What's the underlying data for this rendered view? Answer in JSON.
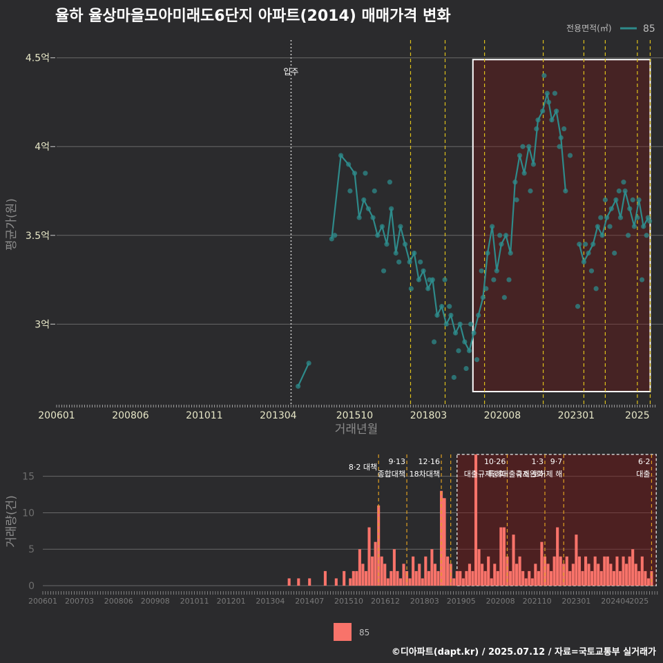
{
  "title": "율하 율상마을모아미래도6단지 아파트(2014) 매매가격 변화",
  "legend_top": {
    "title": "전용면적(㎡)",
    "label": "85",
    "color": "#2e8b8b"
  },
  "legend_bottom": {
    "label": "85",
    "color": "#f8736a"
  },
  "footer": "©디아파트(dapt.kr) / 2025.07.12 / 자료=국토교통부 실거래가",
  "chart_data": [
    {
      "type": "line",
      "title": "율하 율상마을모아미래도6단지 아파트(2014) 매매가격 변화",
      "xlabel": "거래년월",
      "ylabel": "평균가(원)",
      "ylim": [
        2.55,
        4.6
      ],
      "x_ticks": [
        "200601",
        "200806",
        "201011",
        "201304",
        "201510",
        "201803",
        "202008",
        "202301",
        "2025"
      ],
      "y_ticks": [
        {
          "v": 3.0,
          "label": "3억"
        },
        {
          "v": 3.5,
          "label": "3.5억"
        },
        {
          "v": 4.0,
          "label": "4억"
        },
        {
          "v": 4.5,
          "label": "4.5억"
        }
      ],
      "grid": true,
      "legend_position": "top-right",
      "vlines_policy": [
        2017.58,
        2018.71,
        2020.0,
        2021.92,
        2023.25,
        2023.95,
        2025.0,
        2025.42
      ],
      "vline_event": {
        "x": 2013.67,
        "label": "입주"
      },
      "highlight_box": {
        "x0": 2019.62,
        "x1": 2025.42,
        "y0": 2.62,
        "y1": 4.49
      },
      "series": [
        {
          "name": "85",
          "points": [
            [
              2013.9,
              2.65
            ],
            [
              2014.25,
              2.78
            ],
            [
              2015.0,
              3.48
            ],
            [
              2015.3,
              3.95
            ],
            [
              2015.55,
              3.9
            ],
            [
              2015.75,
              3.85
            ],
            [
              2015.9,
              3.6
            ],
            [
              2016.05,
              3.7
            ],
            [
              2016.2,
              3.65
            ],
            [
              2016.35,
              3.6
            ],
            [
              2016.5,
              3.5
            ],
            [
              2016.65,
              3.55
            ],
            [
              2016.8,
              3.45
            ],
            [
              2016.95,
              3.65
            ],
            [
              2017.1,
              3.4
            ],
            [
              2017.25,
              3.55
            ],
            [
              2017.4,
              3.45
            ],
            [
              2017.55,
              3.35
            ],
            [
              2017.7,
              3.4
            ],
            [
              2017.85,
              3.25
            ],
            [
              2018.0,
              3.3
            ],
            [
              2018.15,
              3.2
            ],
            [
              2018.3,
              3.25
            ],
            [
              2018.45,
              3.05
            ],
            [
              2018.6,
              3.1
            ],
            [
              2018.75,
              3.0
            ],
            [
              2018.9,
              3.05
            ],
            [
              2019.05,
              2.95
            ],
            [
              2019.2,
              3.0
            ],
            [
              2019.35,
              2.9
            ],
            [
              2019.5,
              2.85
            ],
            [
              2019.65,
              2.95
            ],
            [
              2019.8,
              3.05
            ],
            [
              2019.95,
              3.15
            ],
            [
              2020.1,
              3.4
            ],
            [
              2020.25,
              3.55
            ],
            [
              2020.4,
              3.3
            ],
            [
              2020.55,
              3.45
            ],
            [
              2020.7,
              3.5
            ],
            [
              2020.85,
              3.4
            ],
            [
              2021.0,
              3.8
            ],
            [
              2021.15,
              3.95
            ],
            [
              2021.3,
              3.85
            ],
            [
              2021.45,
              4.0
            ],
            [
              2021.6,
              3.9
            ],
            [
              2021.75,
              4.15
            ],
            [
              2021.9,
              4.2
            ],
            [
              2022.05,
              4.3
            ],
            [
              2022.2,
              4.15
            ],
            [
              2022.35,
              4.2
            ],
            [
              2022.5,
              4.05
            ],
            [
              2022.65,
              3.75
            ],
            [
              2023.1,
              3.45
            ],
            [
              2023.25,
              3.35
            ],
            [
              2023.4,
              3.4
            ],
            [
              2023.55,
              3.45
            ],
            [
              2023.7,
              3.55
            ],
            [
              2023.85,
              3.5
            ],
            [
              2024.0,
              3.6
            ],
            [
              2024.15,
              3.65
            ],
            [
              2024.3,
              3.7
            ],
            [
              2024.45,
              3.6
            ],
            [
              2024.6,
              3.75
            ],
            [
              2024.75,
              3.65
            ],
            [
              2024.9,
              3.55
            ],
            [
              2025.05,
              3.7
            ],
            [
              2025.2,
              3.55
            ],
            [
              2025.35,
              3.6
            ]
          ]
        }
      ],
      "scatter_extra": [
        [
          2015.1,
          3.5
        ],
        [
          2015.6,
          3.75
        ],
        [
          2016.1,
          3.85
        ],
        [
          2016.4,
          3.75
        ],
        [
          2016.7,
          3.3
        ],
        [
          2016.9,
          3.8
        ],
        [
          2017.2,
          3.35
        ],
        [
          2017.6,
          3.2
        ],
        [
          2017.9,
          3.35
        ],
        [
          2018.2,
          3.25
        ],
        [
          2018.35,
          2.9
        ],
        [
          2018.7,
          3.25
        ],
        [
          2018.85,
          3.1
        ],
        [
          2019.0,
          2.7
        ],
        [
          2019.15,
          2.85
        ],
        [
          2019.4,
          2.75
        ],
        [
          2019.55,
          3.0
        ],
        [
          2019.75,
          2.8
        ],
        [
          2019.9,
          3.3
        ],
        [
          2020.05,
          3.2
        ],
        [
          2020.3,
          3.25
        ],
        [
          2020.5,
          3.5
        ],
        [
          2020.65,
          3.15
        ],
        [
          2020.8,
          3.25
        ],
        [
          2021.05,
          3.7
        ],
        [
          2021.25,
          4.0
        ],
        [
          2021.5,
          3.75
        ],
        [
          2021.7,
          4.1
        ],
        [
          2021.95,
          4.4
        ],
        [
          2022.1,
          4.25
        ],
        [
          2022.3,
          4.3
        ],
        [
          2022.45,
          4.0
        ],
        [
          2022.6,
          4.1
        ],
        [
          2022.8,
          3.95
        ],
        [
          2023.05,
          3.1
        ],
        [
          2023.3,
          3.45
        ],
        [
          2023.5,
          3.3
        ],
        [
          2023.65,
          3.2
        ],
        [
          2023.8,
          3.6
        ],
        [
          2023.95,
          3.7
        ],
        [
          2024.1,
          3.55
        ],
        [
          2024.25,
          3.4
        ],
        [
          2024.4,
          3.75
        ],
        [
          2024.55,
          3.8
        ],
        [
          2024.7,
          3.5
        ],
        [
          2024.85,
          3.7
        ],
        [
          2025.0,
          3.6
        ],
        [
          2025.15,
          3.25
        ],
        [
          2025.3,
          3.5
        ],
        [
          2025.4,
          3.58
        ]
      ]
    },
    {
      "type": "bar",
      "xlabel": "",
      "ylabel": "거래량(건)",
      "ylim": [
        0,
        18
      ],
      "y_ticks": [
        0,
        5,
        10,
        15
      ],
      "x_ticks": [
        "200601",
        "200703",
        "200806",
        "200908",
        "201011",
        "201201",
        "201304",
        "201407",
        "201510",
        "201612",
        "201803",
        "201905",
        "202008",
        "202110",
        "202301",
        "202404",
        "2025"
      ],
      "policy_lines": [
        {
          "x": 2016.7,
          "label": "8·2 대책"
        },
        {
          "x": 2017.6,
          "label": "9·13",
          "label2": "종합대책"
        },
        {
          "x": 2018.7,
          "label": "12·16",
          "label2": "18차대책"
        },
        {
          "x": 2019.0,
          "label": ""
        },
        {
          "x": 2020.8,
          "label": "10·26",
          "label2": "대출규제강화"
        },
        {
          "x": 2022.0,
          "label": "1·3",
          "label2": "규제완화"
        },
        {
          "x": 2022.6,
          "label": "9·7",
          "label2": "특례대출축소 토허제 해"
        },
        {
          "x": 2025.4,
          "label": "6·2",
          "label2": "대출"
        }
      ],
      "highlight_box": {
        "x0": 2019.2,
        "x1": 2025.55
      },
      "series": [
        {
          "name": "85",
          "bars": [
            [
              2013.85,
              1
            ],
            [
              2014.15,
              1
            ],
            [
              2014.5,
              1
            ],
            [
              2015.0,
              2
            ],
            [
              2015.35,
              1
            ],
            [
              2015.6,
              2
            ],
            [
              2015.8,
              1
            ],
            [
              2015.9,
              2
            ],
            [
              2016.0,
              2
            ],
            [
              2016.1,
              5
            ],
            [
              2016.2,
              3
            ],
            [
              2016.3,
              2
            ],
            [
              2016.4,
              8
            ],
            [
              2016.5,
              4
            ],
            [
              2016.6,
              6
            ],
            [
              2016.7,
              11
            ],
            [
              2016.8,
              4
            ],
            [
              2016.9,
              3
            ],
            [
              2017.0,
              1
            ],
            [
              2017.1,
              2
            ],
            [
              2017.2,
              5
            ],
            [
              2017.3,
              2
            ],
            [
              2017.4,
              1
            ],
            [
              2017.5,
              3
            ],
            [
              2017.6,
              2
            ],
            [
              2017.7,
              1
            ],
            [
              2017.8,
              4
            ],
            [
              2017.9,
              2
            ],
            [
              2018.0,
              3
            ],
            [
              2018.1,
              1
            ],
            [
              2018.2,
              4
            ],
            [
              2018.3,
              2
            ],
            [
              2018.4,
              5
            ],
            [
              2018.5,
              3
            ],
            [
              2018.6,
              2
            ],
            [
              2018.7,
              13
            ],
            [
              2018.75,
              12
            ],
            [
              2018.8,
              12
            ],
            [
              2018.9,
              4
            ],
            [
              2019.0,
              3
            ],
            [
              2019.1,
              1
            ],
            [
              2019.2,
              2
            ],
            [
              2019.3,
              2
            ],
            [
              2019.4,
              1
            ],
            [
              2019.5,
              2
            ],
            [
              2019.6,
              3
            ],
            [
              2019.7,
              2
            ],
            [
              2019.8,
              18
            ],
            [
              2019.9,
              5
            ],
            [
              2020.0,
              3
            ],
            [
              2020.1,
              2
            ],
            [
              2020.2,
              4
            ],
            [
              2020.3,
              1
            ],
            [
              2020.4,
              3
            ],
            [
              2020.5,
              2
            ],
            [
              2020.6,
              8
            ],
            [
              2020.7,
              8
            ],
            [
              2020.8,
              4
            ],
            [
              2020.9,
              2
            ],
            [
              2021.0,
              7
            ],
            [
              2021.1,
              3
            ],
            [
              2021.2,
              4
            ],
            [
              2021.3,
              2
            ],
            [
              2021.4,
              1
            ],
            [
              2021.5,
              2
            ],
            [
              2021.6,
              1
            ],
            [
              2021.7,
              3
            ],
            [
              2021.8,
              2
            ],
            [
              2021.9,
              6
            ],
            [
              2022.0,
              4
            ],
            [
              2022.1,
              3
            ],
            [
              2022.2,
              2
            ],
            [
              2022.3,
              4
            ],
            [
              2022.4,
              8
            ],
            [
              2022.5,
              4
            ],
            [
              2022.6,
              3
            ],
            [
              2022.7,
              4
            ],
            [
              2022.8,
              2
            ],
            [
              2022.9,
              3
            ],
            [
              2023.0,
              7
            ],
            [
              2023.1,
              4
            ],
            [
              2023.2,
              2
            ],
            [
              2023.3,
              4
            ],
            [
              2023.4,
              3
            ],
            [
              2023.5,
              2
            ],
            [
              2023.6,
              4
            ],
            [
              2023.7,
              3
            ],
            [
              2023.8,
              2
            ],
            [
              2023.9,
              4
            ],
            [
              2024.0,
              4
            ],
            [
              2024.1,
              3
            ],
            [
              2024.2,
              2
            ],
            [
              2024.3,
              4
            ],
            [
              2024.4,
              2
            ],
            [
              2024.5,
              4
            ],
            [
              2024.6,
              3
            ],
            [
              2024.7,
              4
            ],
            [
              2024.8,
              5
            ],
            [
              2024.9,
              3
            ],
            [
              2025.0,
              2
            ],
            [
              2025.1,
              4
            ],
            [
              2025.2,
              2
            ],
            [
              2025.3,
              1
            ],
            [
              2025.4,
              2
            ]
          ]
        }
      ]
    }
  ]
}
